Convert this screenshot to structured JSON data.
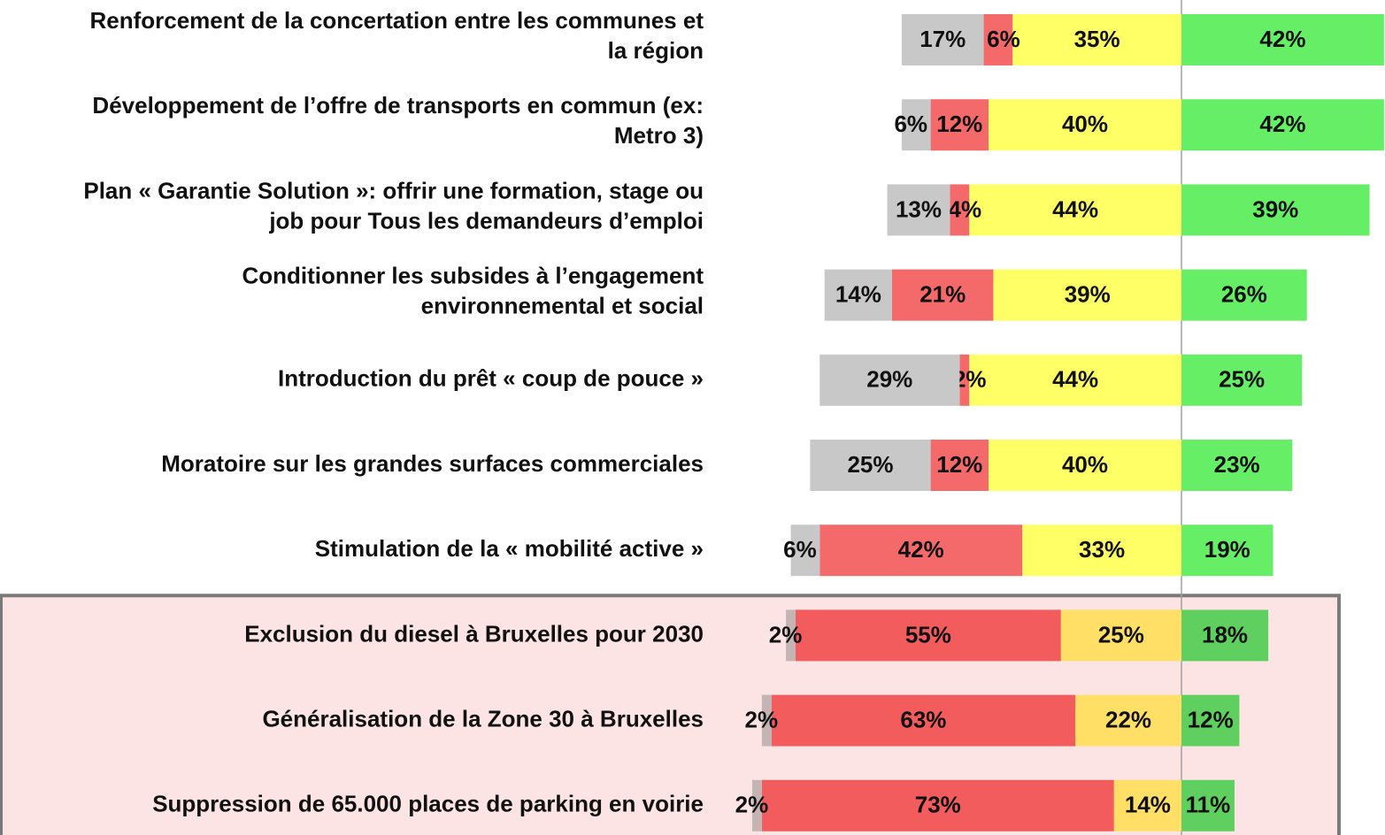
{
  "chart_data": {
    "type": "diverging-bar",
    "categories": [
      [
        "Renforcement de la concertation entre les communes et",
        "la région"
      ],
      [
        "Développement de l’offre de transports en commun (ex:",
        "Metro 3)"
      ],
      [
        "Plan « Garantie Solution »: offrir une formation, stage ou",
        "job pour Tous les demandeurs d’emploi"
      ],
      [
        "Conditionner les subsides à l’engagement",
        "environnemental et social"
      ],
      [
        "Introduction du prêt « coup de pouce »"
      ],
      [
        "Moratoire sur les grandes surfaces commerciales"
      ],
      [
        "Stimulation de la « mobilité active »"
      ],
      [
        "Exclusion du diesel à Bruxelles pour 2030"
      ],
      [
        "Généralisation de la Zone 30 à Bruxelles"
      ],
      [
        "Suppression de 65.000 places de parking en voirie"
      ]
    ],
    "series": [
      {
        "color": "#c8c8c8",
        "highlight_color": "#c4b4b4",
        "values": [
          17,
          6,
          13,
          14,
          29,
          25,
          6,
          2,
          2,
          2
        ],
        "value_labels": [
          "17%",
          "6%",
          "13%",
          "14%",
          "29%",
          "25%",
          "6%",
          "2%",
          "2%",
          "2%"
        ]
      },
      {
        "color": "#f46a6a",
        "highlight_color": "#f25c5c",
        "values": [
          6,
          12,
          4,
          21,
          2,
          12,
          42,
          55,
          63,
          73
        ],
        "value_labels": [
          "6%",
          "12%",
          "4%",
          "21%",
          "2%",
          "12%",
          "42%",
          "55%",
          "63%",
          "73%"
        ]
      },
      {
        "color": "#ffff66",
        "highlight_color": "#ffdf66",
        "values": [
          35,
          40,
          44,
          39,
          44,
          40,
          33,
          25,
          22,
          14
        ],
        "value_labels": [
          "35%",
          "40%",
          "44%",
          "39%",
          "44%",
          "40%",
          "33%",
          "25%",
          "22%",
          "14%"
        ]
      },
      {
        "color": "#66ee66",
        "highlight_color": "#5fcf5f",
        "values": [
          42,
          42,
          39,
          26,
          25,
          23,
          19,
          18,
          12,
          11
        ],
        "value_labels": [
          "42%",
          "42%",
          "39%",
          "26%",
          "25%",
          "23%",
          "19%",
          "18%",
          "12%",
          "11%"
        ]
      }
    ],
    "highlight_rows": [
      7,
      8,
      9
    ]
  }
}
